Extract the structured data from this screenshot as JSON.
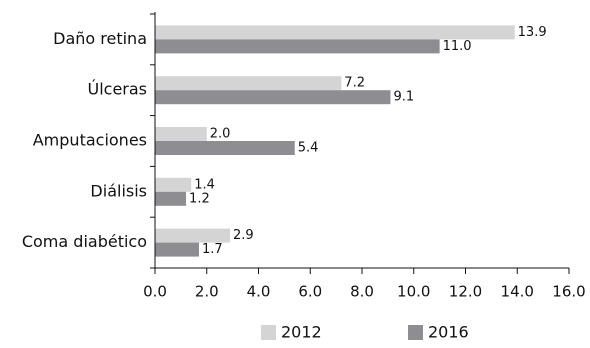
{
  "chart_data": {
    "type": "hbar",
    "categories": [
      "Daño retina",
      "Úlceras",
      "Amputaciones",
      "Diálisis",
      "Coma diabético"
    ],
    "series": [
      {
        "name": "2012",
        "color": "#d4d4d4",
        "values": [
          13.9,
          7.2,
          2.0,
          1.4,
          2.9
        ],
        "value_labels": [
          "13.9",
          "7.2",
          "2.0",
          "1.4",
          "2.9"
        ]
      },
      {
        "name": "2016",
        "color": "#8e8e92",
        "values": [
          11.0,
          9.1,
          5.4,
          1.2,
          1.7
        ],
        "value_labels": [
          "11.0",
          "9.1",
          "5.4",
          "1.2",
          "1.7"
        ]
      }
    ],
    "xlim": [
      0,
      16
    ],
    "xticks": [
      {
        "value": 0,
        "label": "0.0"
      },
      {
        "value": 2,
        "label": "2.0"
      },
      {
        "value": 4,
        "label": "4.0"
      },
      {
        "value": 6,
        "label": "6.0"
      },
      {
        "value": 8,
        "label": "8.0"
      },
      {
        "value": 10,
        "label": "10.0"
      },
      {
        "value": 12,
        "label": "12.0"
      },
      {
        "value": 14,
        "label": "14.0"
      },
      {
        "value": 16,
        "label": "16.0"
      }
    ],
    "legend": "bottom"
  }
}
